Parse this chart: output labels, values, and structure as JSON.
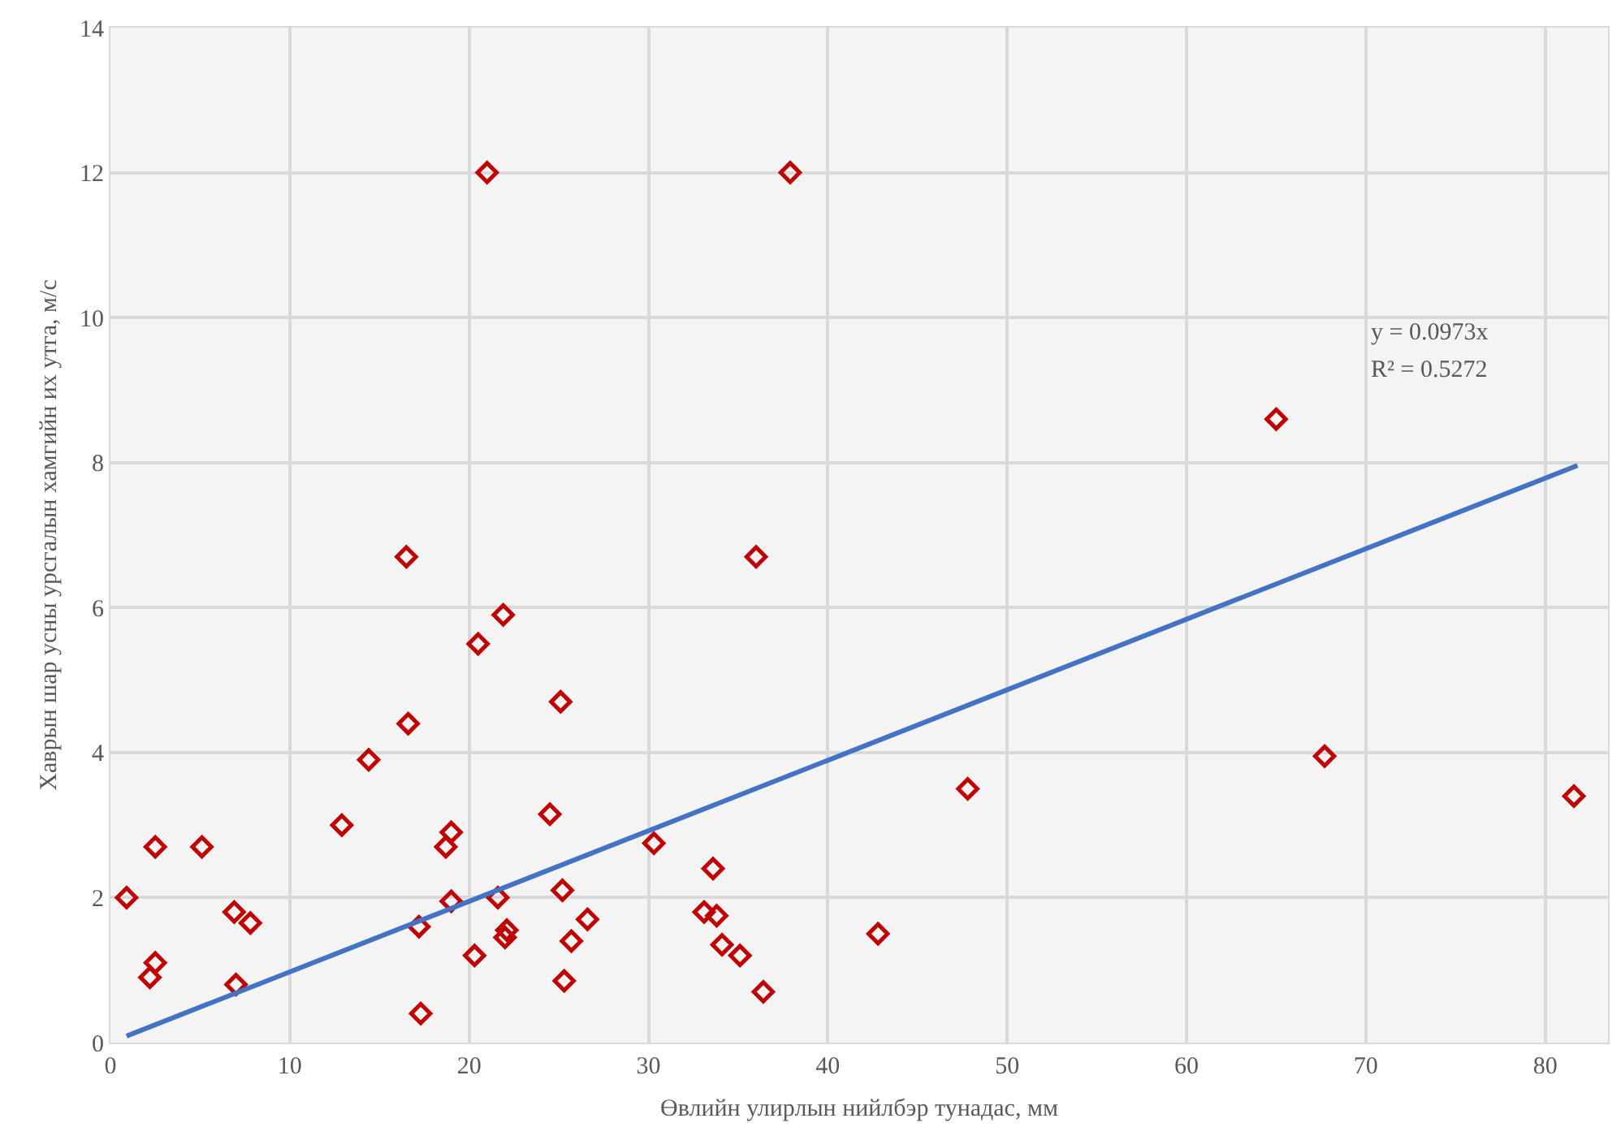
{
  "chart_data": {
    "type": "scatter",
    "xlabel": "Өвлийн улирлын нийлбэр тунадас, мм",
    "ylabel": "Хаврын шар усны урсгалын хамгийн их утга, м/с",
    "x": [
      0.9,
      2.2,
      2.5,
      2.5,
      5.1,
      6.9,
      7.8,
      7.0,
      12.9,
      14.4,
      16.5,
      16.6,
      17.2,
      17.3,
      18.7,
      19.0,
      19.0,
      20.3,
      20.5,
      21.0,
      21.6,
      22.0,
      22.1,
      21.9,
      24.5,
      25.1,
      25.2,
      25.3,
      25.7,
      26.6,
      30.3,
      33.1,
      33.6,
      33.8,
      34.1,
      35.1,
      36.0,
      36.4,
      37.9,
      42.8,
      47.8,
      65.0,
      67.7,
      81.6
    ],
    "series": [
      {
        "color": "#c00000",
        "marker": "diamond",
        "values": [
          2.0,
          0.9,
          1.1,
          2.7,
          2.7,
          1.8,
          1.65,
          0.8,
          3.0,
          3.9,
          6.7,
          4.4,
          1.6,
          0.4,
          2.7,
          2.9,
          1.95,
          1.2,
          5.5,
          12.0,
          2.0,
          1.45,
          1.55,
          5.9,
          3.15,
          4.7,
          2.1,
          0.85,
          1.4,
          1.7,
          2.75,
          1.8,
          2.4,
          1.75,
          1.35,
          1.2,
          6.7,
          0.7,
          12.0,
          1.5,
          3.5,
          8.6,
          3.95,
          3.4
        ]
      },
      {
        "type": "line",
        "color": "#4472c4",
        "marker": "none",
        "x": [
          0.9,
          81.8
        ],
        "values": [
          0.09,
          7.96
        ]
      }
    ],
    "annotations": [
      "y = 0.0973x",
      "R² = 0.5272"
    ],
    "xlim": [
      0,
      83.5
    ],
    "xticks": [
      0,
      10,
      20,
      30,
      40,
      50,
      60,
      70,
      80
    ],
    "ylim": [
      0,
      14
    ],
    "yticks": [
      0,
      2,
      4,
      6,
      8,
      10,
      12,
      14
    ],
    "grid": true,
    "legend": false
  }
}
